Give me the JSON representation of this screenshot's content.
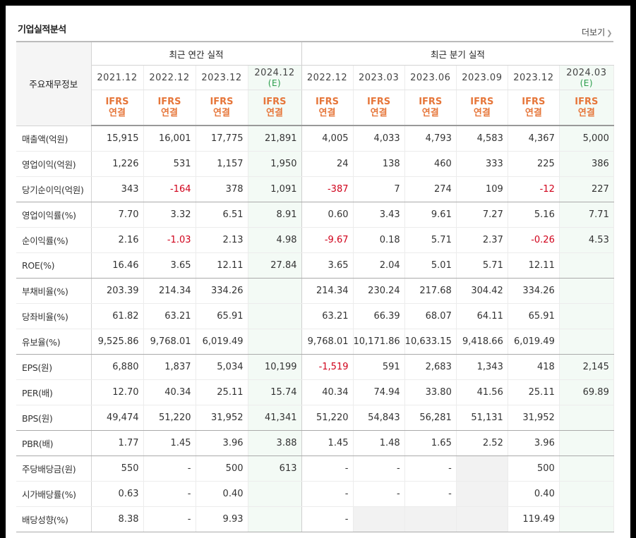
{
  "title": "기업실적분석",
  "more_label": "더보기",
  "header": {
    "label_col": "주요재무정보",
    "annual_title": "최근 연간 실적",
    "quarterly_title": "최근 분기 실적",
    "periods": [
      {
        "line1": "2021.12",
        "line2": ""
      },
      {
        "line1": "2022.12",
        "line2": ""
      },
      {
        "line1": "2023.12",
        "line2": ""
      },
      {
        "line1": "2024.12",
        "line2": "(E)"
      },
      {
        "line1": "2022.12",
        "line2": ""
      },
      {
        "line1": "2023.03",
        "line2": ""
      },
      {
        "line1": "2023.06",
        "line2": ""
      },
      {
        "line1": "2023.09",
        "line2": ""
      },
      {
        "line1": "2023.12",
        "line2": ""
      },
      {
        "line1": "2024.03",
        "line2": "(E)"
      }
    ],
    "standard_line1": "IFRS",
    "standard_line2": "연결"
  },
  "rows": [
    {
      "label": "매출액(억원)",
      "values": [
        "15,915",
        "16,001",
        "17,775",
        "21,891",
        "4,005",
        "4,033",
        "4,793",
        "4,583",
        "4,367",
        "5,000"
      ]
    },
    {
      "label": "영업이익(억원)",
      "values": [
        "1,226",
        "531",
        "1,157",
        "1,950",
        "24",
        "138",
        "460",
        "333",
        "225",
        "386"
      ]
    },
    {
      "label": "당기순이익(억원)",
      "values": [
        "343",
        "-164",
        "378",
        "1,091",
        "-387",
        "7",
        "274",
        "109",
        "-12",
        "227"
      ]
    },
    {
      "label": "영업이익률(%)",
      "values": [
        "7.70",
        "3.32",
        "6.51",
        "8.91",
        "0.60",
        "3.43",
        "9.61",
        "7.27",
        "5.16",
        "7.71"
      ]
    },
    {
      "label": "순이익률(%)",
      "values": [
        "2.16",
        "-1.03",
        "2.13",
        "4.98",
        "-9.67",
        "0.18",
        "5.71",
        "2.37",
        "-0.26",
        "4.53"
      ]
    },
    {
      "label": "ROE(%)",
      "values": [
        "16.46",
        "3.65",
        "12.11",
        "27.84",
        "3.65",
        "2.04",
        "5.01",
        "5.71",
        "12.11",
        ""
      ]
    },
    {
      "label": "부채비율(%)",
      "values": [
        "203.39",
        "214.34",
        "334.26",
        "",
        "214.34",
        "230.24",
        "217.68",
        "304.42",
        "334.26",
        ""
      ]
    },
    {
      "label": "당좌비율(%)",
      "values": [
        "61.82",
        "63.21",
        "65.91",
        "",
        "63.21",
        "66.39",
        "68.07",
        "64.11",
        "65.91",
        ""
      ]
    },
    {
      "label": "유보율(%)",
      "values": [
        "9,525.86",
        "9,768.01",
        "6,019.49",
        "",
        "9,768.01",
        "10,171.86",
        "10,633.15",
        "9,418.66",
        "6,019.49",
        ""
      ]
    },
    {
      "label": "EPS(원)",
      "values": [
        "6,880",
        "1,837",
        "5,034",
        "10,199",
        "-1,519",
        "591",
        "2,683",
        "1,343",
        "418",
        "2,145"
      ]
    },
    {
      "label": "PER(배)",
      "values": [
        "12.70",
        "40.34",
        "25.11",
        "15.74",
        "40.34",
        "74.94",
        "33.80",
        "41.56",
        "25.11",
        "69.89"
      ]
    },
    {
      "label": "BPS(원)",
      "values": [
        "49,474",
        "51,220",
        "31,952",
        "41,341",
        "51,220",
        "54,843",
        "56,281",
        "51,131",
        "31,952",
        ""
      ]
    },
    {
      "label": "PBR(배)",
      "values": [
        "1.77",
        "1.45",
        "3.96",
        "3.88",
        "1.45",
        "1.48",
        "1.65",
        "2.52",
        "3.96",
        ""
      ]
    },
    {
      "label": "주당배당금(원)",
      "values": [
        "550",
        "-",
        "500",
        "613",
        "-",
        "-",
        "-",
        "",
        "500",
        ""
      ]
    },
    {
      "label": "시가배당률(%)",
      "values": [
        "0.63",
        "-",
        "0.40",
        "",
        "-",
        "-",
        "-",
        "",
        "0.40",
        ""
      ]
    },
    {
      "label": "배당성향(%)",
      "values": [
        "8.38",
        "-",
        "9.93",
        "",
        "-",
        "",
        "",
        "",
        "119.49",
        ""
      ]
    }
  ],
  "colors": {
    "negative": "#d0021b",
    "standard": "#e6763a",
    "estimate_bg": "#f3faf5"
  }
}
